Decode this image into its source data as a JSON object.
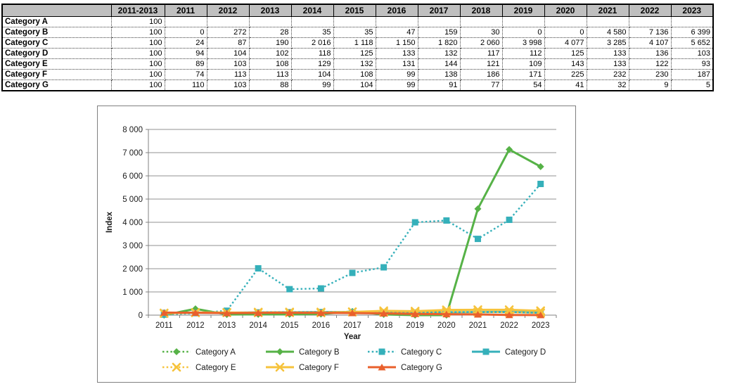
{
  "table": {
    "columns": [
      "",
      "2011-2013",
      "2011",
      "2012",
      "2013",
      "2014",
      "2015",
      "2016",
      "2017",
      "2018",
      "2019",
      "2020",
      "2021",
      "2022",
      "2023"
    ],
    "rows": [
      {
        "label": "Category A",
        "values": [
          "100",
          "",
          "",
          "",
          "",
          "",
          "",
          "",
          "",
          "",
          "",
          "",
          "",
          ""
        ]
      },
      {
        "label": "Category B",
        "values": [
          "100",
          "0",
          "272",
          "28",
          "35",
          "35",
          "47",
          "159",
          "30",
          "0",
          "0",
          "4 580",
          "7 136",
          "6 399"
        ]
      },
      {
        "label": "Category C",
        "values": [
          "100",
          "24",
          "87",
          "190",
          "2 016",
          "1 118",
          "1 150",
          "1 820",
          "2 060",
          "3 998",
          "4 077",
          "3 285",
          "4 107",
          "5 652"
        ]
      },
      {
        "label": "Category D",
        "values": [
          "100",
          "94",
          "104",
          "102",
          "118",
          "125",
          "133",
          "132",
          "117",
          "112",
          "125",
          "133",
          "136",
          "103"
        ]
      },
      {
        "label": "Category E",
        "values": [
          "100",
          "89",
          "103",
          "108",
          "129",
          "132",
          "131",
          "144",
          "121",
          "109",
          "143",
          "133",
          "122",
          "93"
        ]
      },
      {
        "label": "Category F",
        "values": [
          "100",
          "74",
          "113",
          "113",
          "104",
          "108",
          "99",
          "138",
          "186",
          "171",
          "225",
          "232",
          "230",
          "187"
        ]
      },
      {
        "label": "Category G",
        "values": [
          "100",
          "110",
          "103",
          "88",
          "99",
          "104",
          "99",
          "91",
          "77",
          "54",
          "41",
          "32",
          "9",
          "5"
        ]
      }
    ]
  },
  "chart_data": {
    "type": "line",
    "title": "",
    "xlabel": "Year",
    "ylabel": "Index",
    "ylim": [
      0,
      8000
    ],
    "ytick_step": 1000,
    "ytick_labels": [
      "0",
      "1 000",
      "2 000",
      "3 000",
      "4 000",
      "5 000",
      "6 000",
      "7 000",
      "8 000"
    ],
    "grid": true,
    "legend_position": "bottom",
    "categories": [
      "2011",
      "2012",
      "2013",
      "2014",
      "2015",
      "2016",
      "2017",
      "2018",
      "2019",
      "2020",
      "2021",
      "2022",
      "2023"
    ],
    "series": [
      {
        "name": "Category A",
        "color": "#56b247",
        "marker": "diamond",
        "line": "dotted",
        "values": []
      },
      {
        "name": "Category B",
        "color": "#56b247",
        "marker": "diamond",
        "line": "solid",
        "values": [
          0,
          272,
          28,
          35,
          35,
          47,
          159,
          30,
          0,
          0,
          4580,
          7136,
          6399
        ]
      },
      {
        "name": "Category C",
        "color": "#35b0ba",
        "marker": "square",
        "line": "dotted",
        "values": [
          24,
          87,
          190,
          2016,
          1118,
          1150,
          1820,
          2060,
          3998,
          4077,
          3285,
          4107,
          5652
        ]
      },
      {
        "name": "Category D",
        "color": "#35b0ba",
        "marker": "square",
        "line": "solid",
        "values": [
          94,
          104,
          102,
          118,
          125,
          133,
          132,
          117,
          112,
          125,
          133,
          136,
          103
        ]
      },
      {
        "name": "Category E",
        "color": "#f6c33c",
        "marker": "x",
        "line": "dotted",
        "values": [
          89,
          103,
          108,
          129,
          132,
          131,
          144,
          121,
          109,
          143,
          133,
          122,
          93
        ]
      },
      {
        "name": "Category F",
        "color": "#f6c33c",
        "marker": "x",
        "line": "solid",
        "values": [
          74,
          113,
          113,
          104,
          108,
          99,
          138,
          186,
          171,
          225,
          232,
          230,
          187
        ]
      },
      {
        "name": "Category G",
        "color": "#e9602c",
        "marker": "triangle",
        "line": "solid",
        "values": [
          110,
          103,
          88,
          99,
          104,
          99,
          91,
          77,
          54,
          41,
          32,
          9,
          5
        ]
      }
    ],
    "colors": {
      "grid": "#909090",
      "axis": "#808080",
      "text": "#1a1a1a",
      "plot_border": "#808080"
    }
  }
}
